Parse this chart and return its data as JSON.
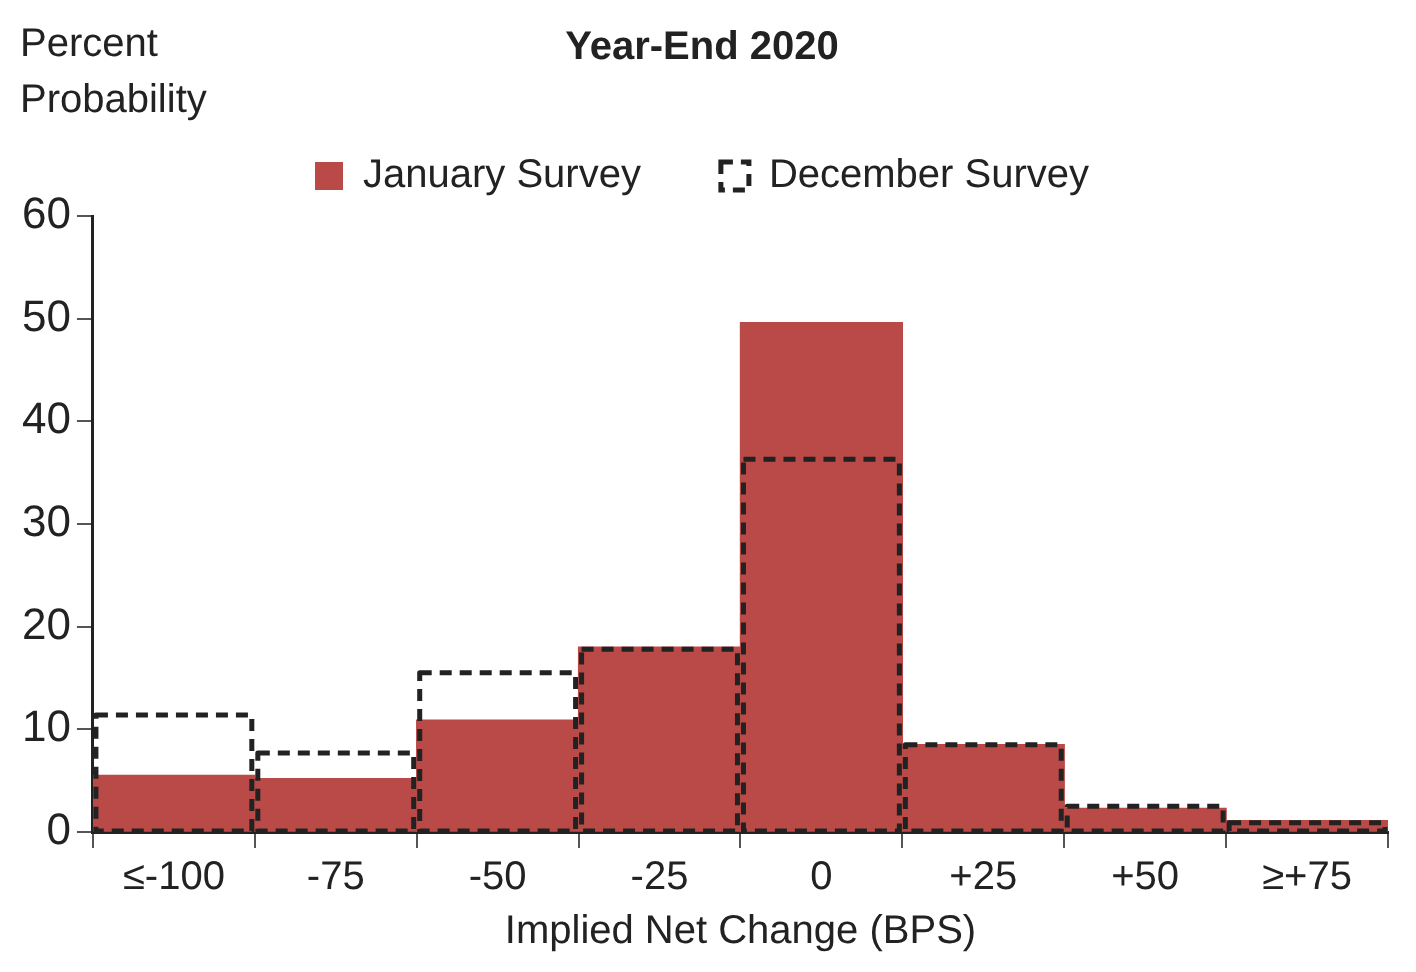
{
  "chart_data": {
    "type": "bar",
    "title": "Year-End 2020",
    "xlabel": "Implied Net Change (BPS)",
    "ylabel": "Percent Probability",
    "categories": [
      "≤-100",
      "-75",
      "-50",
      "-25",
      "0",
      "+25",
      "+50",
      "≥+75"
    ],
    "series": [
      {
        "name": "January Survey",
        "color": "#b94a48",
        "values": [
          5.5,
          5.2,
          10.9,
          18,
          49.6,
          8.5,
          2.3,
          1.1
        ]
      },
      {
        "name": "December Survey",
        "color": "#222222",
        "line_style": "dashed",
        "values": [
          11.4,
          7.7,
          15.5,
          17.8,
          36.3,
          8.5,
          2.5,
          0.9
        ]
      }
    ],
    "ylim": [
      0,
      60
    ],
    "yticks": [
      0,
      10,
      20,
      30,
      40,
      50,
      60
    ],
    "grid": false,
    "legend": "top"
  }
}
